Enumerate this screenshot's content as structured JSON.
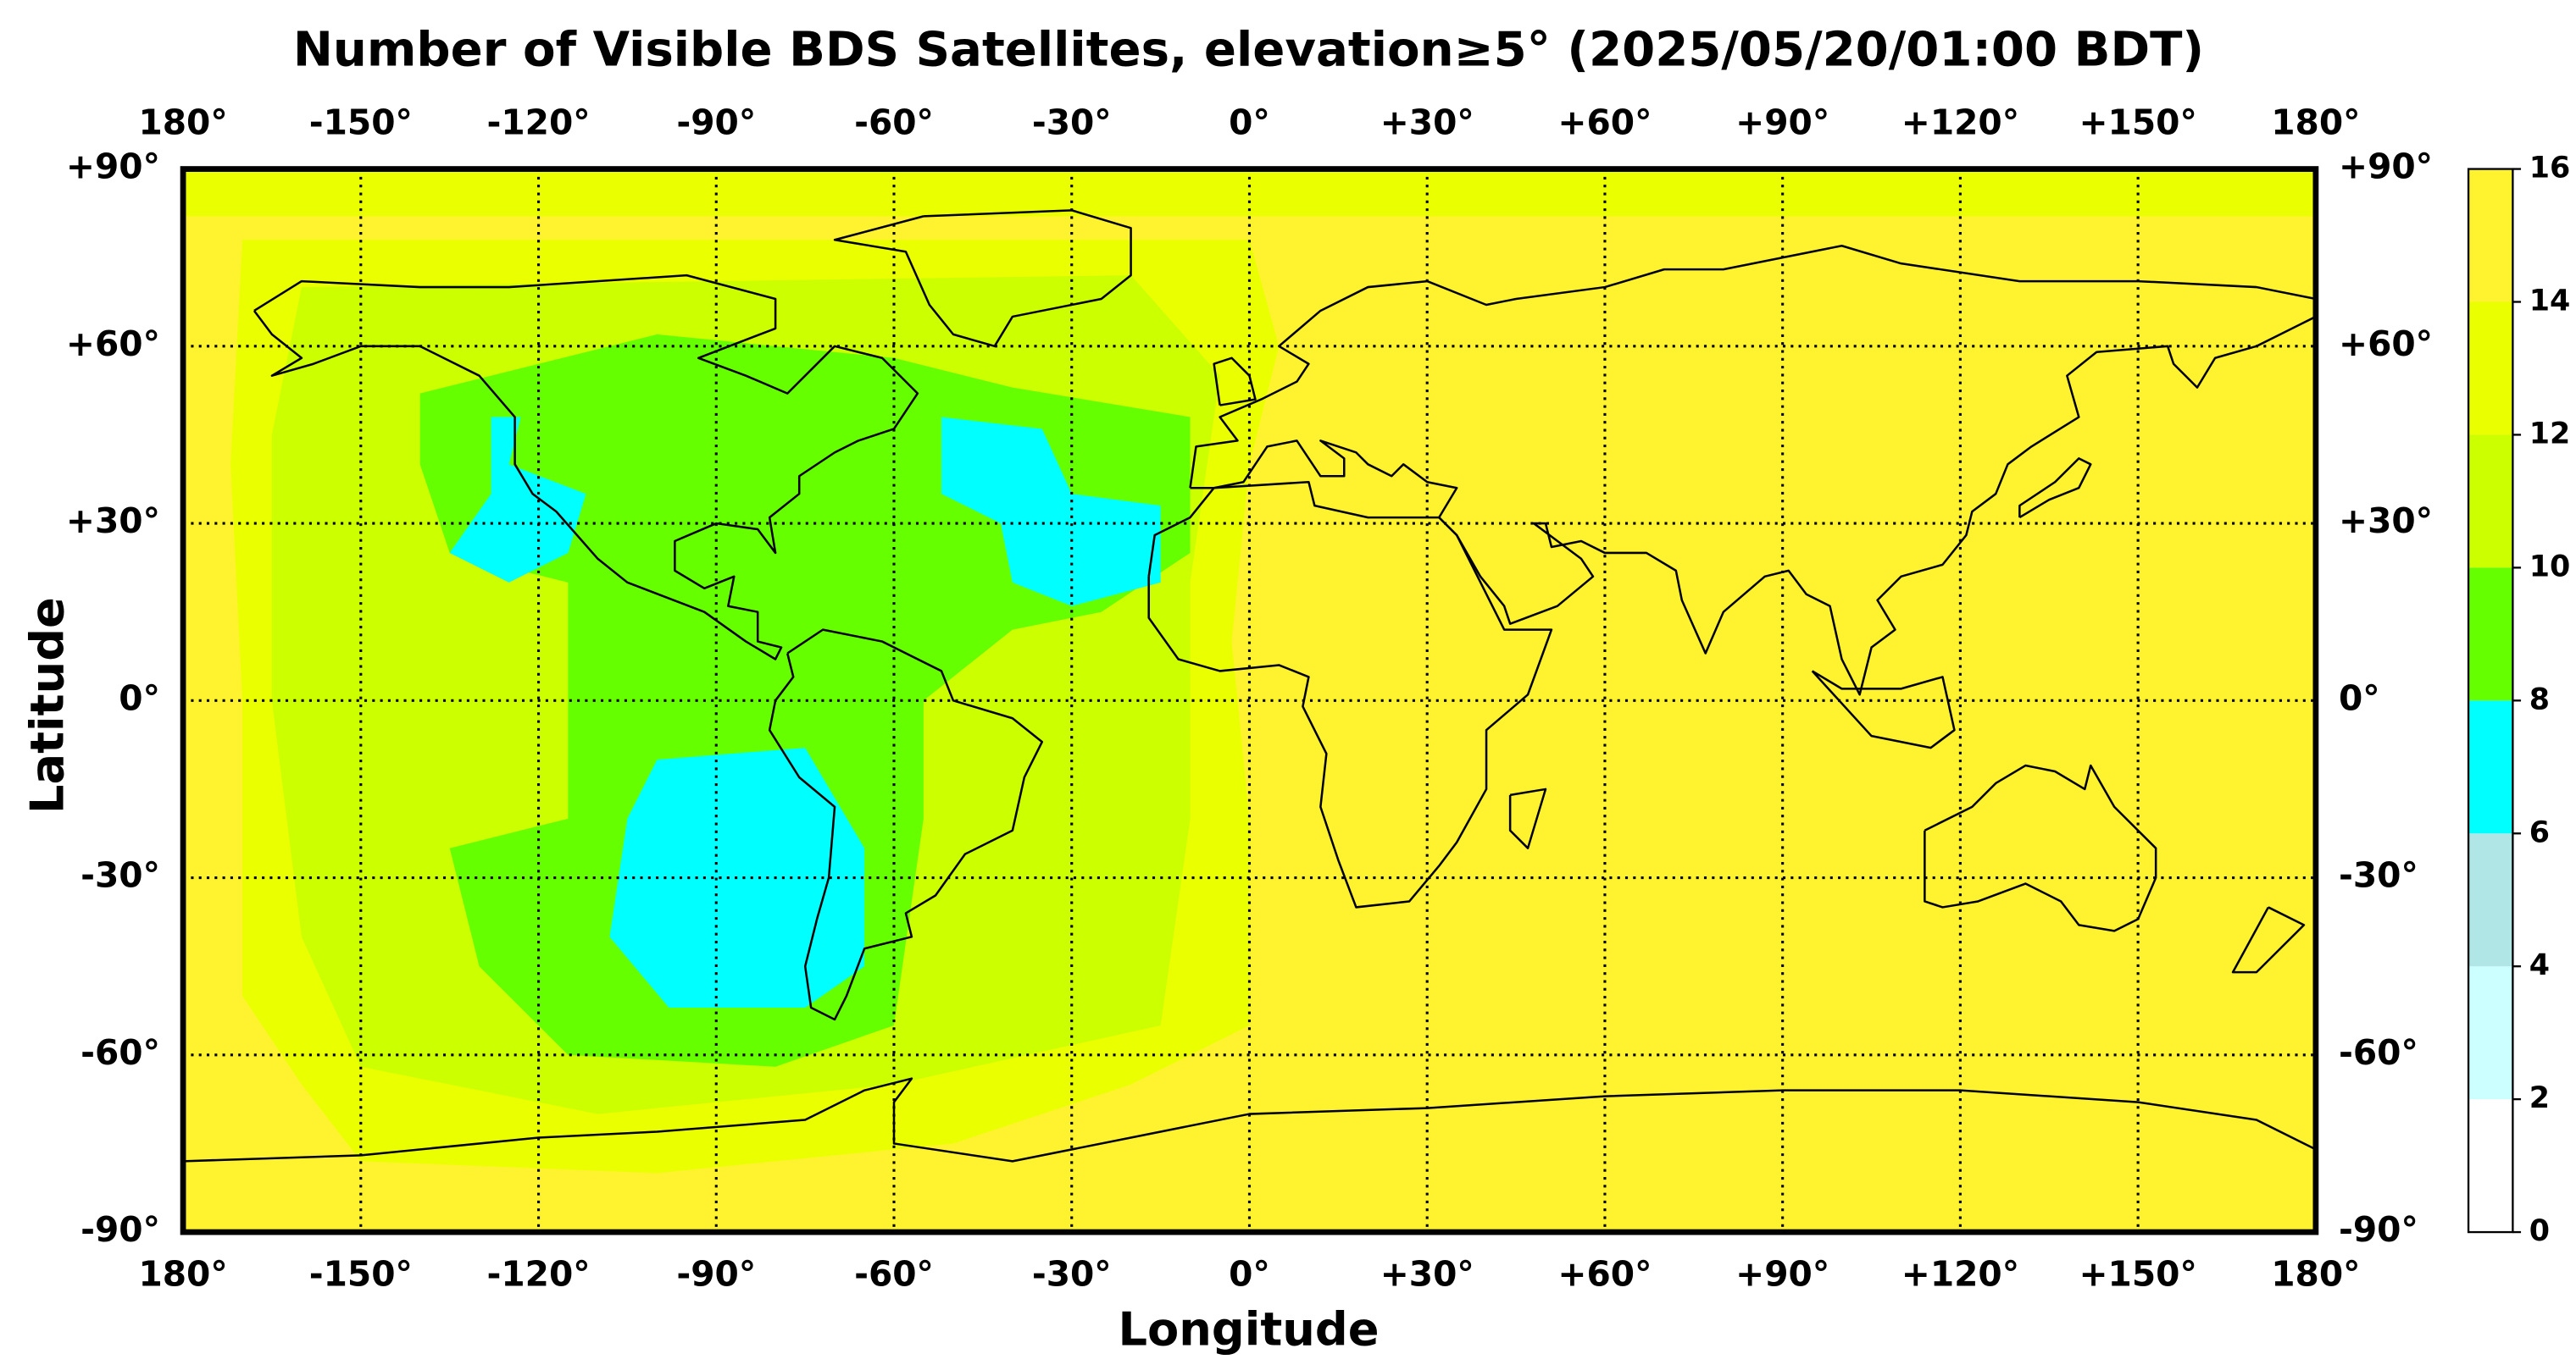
{
  "chart_data": {
    "type": "map",
    "title": "Number of Visible BDS Satellites, elevation≥5° (2025/05/20/01:00 BDT)",
    "x_label": "Longitude",
    "y_label": "Latitude",
    "xlim": [
      -180,
      180
    ],
    "ylim": [
      -90,
      90
    ],
    "xticks": [
      {
        "value": -180,
        "label": "180°"
      },
      {
        "value": -150,
        "label": "-150°"
      },
      {
        "value": -120,
        "label": "-120°"
      },
      {
        "value": -90,
        "label": "-90°"
      },
      {
        "value": -60,
        "label": "-60°"
      },
      {
        "value": -30,
        "label": "-30°"
      },
      {
        "value": 0,
        "label": "0°"
      },
      {
        "value": 30,
        "label": "+30°"
      },
      {
        "value": 60,
        "label": "+60°"
      },
      {
        "value": 90,
        "label": "+90°"
      },
      {
        "value": 120,
        "label": "+120°"
      },
      {
        "value": 150,
        "label": "+150°"
      },
      {
        "value": 180,
        "label": "180°"
      }
    ],
    "yticks": [
      {
        "value": 90,
        "label": "+90°"
      },
      {
        "value": 60,
        "label": "+60°"
      },
      {
        "value": 30,
        "label": "+30°"
      },
      {
        "value": 0,
        "label": "0°"
      },
      {
        "value": -30,
        "label": "-30°"
      },
      {
        "value": -60,
        "label": "-60°"
      },
      {
        "value": -90,
        "label": "-90°"
      }
    ],
    "grid": true,
    "colorbar": {
      "ticks": [
        0,
        2,
        4,
        6,
        8,
        10,
        12,
        14,
        16
      ],
      "colors": [
        "#ffffff",
        "#ccffff",
        "#b0e6e6",
        "#00ffff",
        "#66ff00",
        "#ccff00",
        "#eaff00",
        "#fff22e"
      ]
    }
  }
}
